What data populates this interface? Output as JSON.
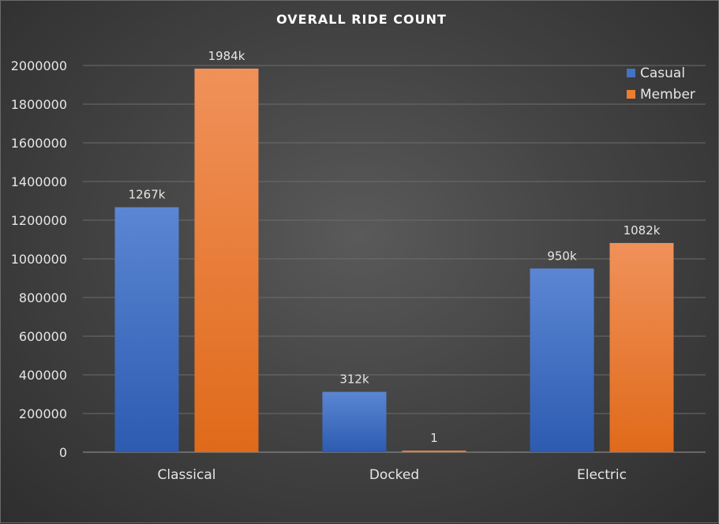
{
  "chart_data": {
    "type": "bar",
    "title": "OVERALL  RIDE COUNT",
    "categories": [
      "Classical",
      "Docked",
      "Electric"
    ],
    "series": [
      {
        "name": "Casual",
        "values": [
          1267000,
          312000,
          950000
        ],
        "labels": [
          "1267k",
          "312k",
          "950k"
        ],
        "color": "#4472c4"
      },
      {
        "name": "Member",
        "values": [
          1984000,
          1,
          1082000
        ],
        "labels": [
          "1984k",
          "1",
          "1082k"
        ],
        "color": "#ed7d31"
      }
    ],
    "yticks": [
      "0",
      "200000",
      "400000",
      "600000",
      "800000",
      "1000000",
      "1200000",
      "1400000",
      "1600000",
      "1800000",
      "2000000"
    ],
    "ylim": [
      0,
      2000000
    ],
    "grid": true,
    "legend_position": "top-right"
  }
}
